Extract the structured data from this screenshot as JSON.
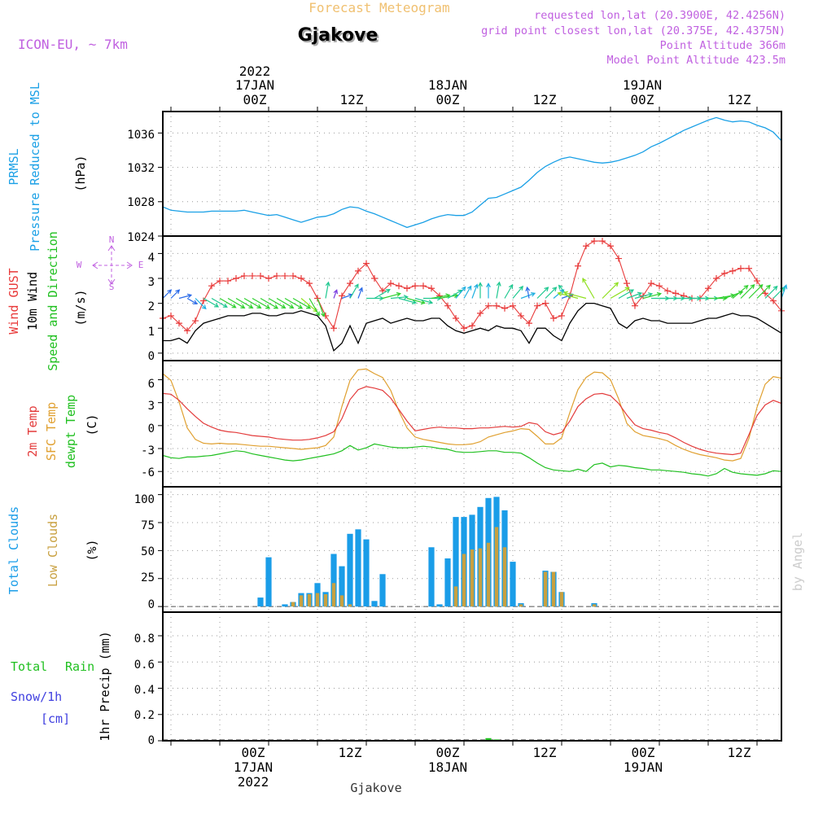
{
  "header": {
    "title": "Forecast Meteogram",
    "location": "Gjakove",
    "model": "ICON-EU, ~ 7km",
    "requested": "requested lon,lat (20.3900E, 42.4256N)",
    "grid_point": "grid point closest lon,lat (20.375E, 42.4375N)",
    "point_altitude": "Point Altitude 366m",
    "model_altitude": "Model Point Altitude 423.5m",
    "footer_location": "Gjakove",
    "watermark": "by Angel"
  },
  "time_axis": {
    "top_year": "2022",
    "days": [
      "17JAN",
      "18JAN",
      "19JAN"
    ],
    "hour_labels": [
      "00Z",
      "12Z",
      "00Z",
      "12Z",
      "00Z",
      "12Z"
    ],
    "bottom_year": "2022",
    "start": "2022-01-16T11:00Z",
    "end": "2022-01-19T15:00Z",
    "step_hours": 1
  },
  "compass": {
    "n": "N",
    "s": "S",
    "e": "E",
    "w": "W"
  },
  "panels": {
    "pressure": {
      "label1": "PRMSL",
      "label2": "Pressure Reduced to MSL",
      "unit": "(hPa)",
      "ticks": [
        "1024",
        "1028",
        "1032",
        "1036"
      ],
      "ylim": [
        1024,
        1038.5
      ]
    },
    "wind": {
      "label1": "Wind GUST",
      "label2": "10m Wind",
      "label3": "Speed and Direction",
      "unit": "(m/s)",
      "ticks": [
        "0",
        "1",
        "2",
        "3",
        "4"
      ],
      "ylim": [
        -0.3,
        4.7
      ]
    },
    "temp": {
      "label1": "2m Temp",
      "label2": "SFC Temp",
      "label3": "dewpt Temp",
      "unit": "(C)",
      "ticks": [
        "-6",
        "-3",
        "0",
        "3",
        "6"
      ],
      "ylim": [
        -8,
        8.5
      ]
    },
    "clouds": {
      "label1": "Total Clouds",
      "label2": "Low Clouds",
      "unit": "(%)",
      "ticks": [
        "0",
        "25",
        "50",
        "75",
        "100"
      ],
      "ylim": [
        -5,
        107
      ]
    },
    "precip": {
      "label1": "Total",
      "label2": "Rain",
      "label3": "Snow/1h",
      "label4": "[cm]",
      "unit": "1hr Precip (mm)",
      "ticks": [
        "0",
        "0.2",
        "0.4",
        "0.6",
        "0.8"
      ],
      "ylim": [
        0,
        0.98
      ]
    }
  },
  "colors": {
    "pressure": "#1aa0e6",
    "gust": "#e83a3a",
    "wind": "#000000",
    "temp2m": "#e33b3b",
    "sfc": "#e0a030",
    "dewpt": "#20c020",
    "total_clouds": "#1a9de8",
    "low_clouds": "#c8a040",
    "rain": "#20c020",
    "snow": "#4040e0",
    "model_text": "#c060e0",
    "title": "#f0c070"
  },
  "chart_data": {
    "type": "line",
    "title": "Forecast Meteogram",
    "x": {
      "start": "2022-01-16T11:00Z",
      "step_hours": 1,
      "count": 77
    },
    "series": [
      {
        "name": "PRMSL",
        "unit": "hPa",
        "values": [
          1027.4,
          1027.0,
          1026.9,
          1026.8,
          1026.8,
          1026.8,
          1026.9,
          1026.9,
          1026.9,
          1026.9,
          1027.0,
          1026.8,
          1026.6,
          1026.4,
          1026.5,
          1026.2,
          1025.9,
          1025.6,
          1025.9,
          1026.2,
          1026.3,
          1026.6,
          1027.1,
          1027.4,
          1027.3,
          1026.9,
          1026.6,
          1026.2,
          1025.8,
          1025.4,
          1025.0,
          1025.3,
          1025.6,
          1026.0,
          1026.3,
          1026.5,
          1026.4,
          1026.4,
          1026.8,
          1027.6,
          1028.4,
          1028.5,
          1028.9,
          1029.3,
          1029.7,
          1030.5,
          1031.4,
          1032.1,
          1032.6,
          1033.0,
          1033.2,
          1033.0,
          1032.8,
          1032.6,
          1032.5,
          1032.6,
          1032.8,
          1033.1,
          1033.4,
          1033.8,
          1034.4,
          1034.8,
          1035.3,
          1035.8,
          1036.3,
          1036.7,
          1037.1,
          1037.5,
          1037.8,
          1037.5,
          1037.3,
          1037.4,
          1037.3,
          1036.9,
          1036.6,
          1036.1,
          1035.1
        ]
      },
      {
        "name": "Wind GUST",
        "unit": "m/s",
        "values": [
          1.4,
          1.5,
          1.2,
          0.9,
          1.3,
          2.1,
          2.7,
          2.9,
          2.9,
          3.0,
          3.1,
          3.1,
          3.1,
          3.0,
          3.1,
          3.1,
          3.1,
          3.0,
          2.8,
          2.2,
          1.5,
          1.0,
          2.3,
          2.8,
          3.3,
          3.6,
          3.0,
          2.5,
          2.8,
          2.7,
          2.6,
          2.7,
          2.7,
          2.6,
          2.3,
          1.9,
          1.4,
          1.0,
          1.1,
          1.6,
          1.9,
          1.9,
          1.8,
          1.9,
          1.5,
          1.2,
          1.9,
          2.0,
          1.4,
          1.5,
          2.3,
          3.5,
          4.3,
          4.5,
          4.5,
          4.3,
          3.8,
          2.8,
          1.9,
          2.3,
          2.8,
          2.7,
          2.5,
          2.4,
          2.3,
          2.2,
          2.2,
          2.6,
          3.0,
          3.2,
          3.3,
          3.4,
          3.4,
          2.9,
          2.4,
          2.1,
          1.7
        ]
      },
      {
        "name": "10m Wind",
        "unit": "m/s",
        "values": [
          0.5,
          0.5,
          0.6,
          0.4,
          0.9,
          1.2,
          1.3,
          1.4,
          1.5,
          1.5,
          1.5,
          1.6,
          1.6,
          1.5,
          1.5,
          1.6,
          1.6,
          1.7,
          1.6,
          1.5,
          1.1,
          0.1,
          0.4,
          1.1,
          0.4,
          1.2,
          1.3,
          1.4,
          1.2,
          1.3,
          1.4,
          1.3,
          1.3,
          1.4,
          1.4,
          1.1,
          0.9,
          0.8,
          0.9,
          1.0,
          0.9,
          1.1,
          1.0,
          1.0,
          0.9,
          0.4,
          1.0,
          1.0,
          0.7,
          0.5,
          1.2,
          1.7,
          2.0,
          2.0,
          1.9,
          1.8,
          1.2,
          1.0,
          1.3,
          1.4,
          1.3,
          1.3,
          1.2,
          1.2,
          1.2,
          1.2,
          1.3,
          1.4,
          1.4,
          1.5,
          1.6,
          1.5,
          1.5,
          1.4,
          1.2,
          1.0,
          0.8
        ]
      },
      {
        "name": "2m Temp",
        "unit": "C",
        "values": [
          4.2,
          4.1,
          3.3,
          2.2,
          1.2,
          0.3,
          -0.2,
          -0.6,
          -0.8,
          -0.9,
          -1.1,
          -1.3,
          -1.4,
          -1.5,
          -1.7,
          -1.8,
          -1.9,
          -1.9,
          -1.8,
          -1.6,
          -1.3,
          -0.8,
          0.9,
          3.4,
          4.7,
          5.1,
          4.9,
          4.6,
          3.6,
          2.1,
          0.6,
          -0.7,
          -0.5,
          -0.3,
          -0.2,
          -0.3,
          -0.3,
          -0.4,
          -0.4,
          -0.3,
          -0.3,
          -0.2,
          -0.1,
          -0.2,
          -0.1,
          0.4,
          0.2,
          -0.8,
          -1.2,
          -0.9,
          0.6,
          2.5,
          3.5,
          4.1,
          4.2,
          3.9,
          2.9,
          1.4,
          0.1,
          -0.4,
          -0.6,
          -0.9,
          -1.1,
          -1.6,
          -2.2,
          -2.7,
          -3.1,
          -3.4,
          -3.6,
          -3.7,
          -3.8,
          -3.6,
          -1.2,
          1.3,
          2.7,
          3.3,
          2.9
        ]
      },
      {
        "name": "SFC Temp",
        "unit": "C",
        "values": [
          6.8,
          5.9,
          3.1,
          -0.3,
          -1.8,
          -2.3,
          -2.4,
          -2.3,
          -2.4,
          -2.4,
          -2.5,
          -2.6,
          -2.7,
          -2.7,
          -2.8,
          -2.9,
          -3.0,
          -3.1,
          -3.0,
          -2.9,
          -2.6,
          -1.5,
          2.5,
          5.9,
          7.3,
          7.4,
          6.8,
          6.3,
          4.6,
          1.9,
          -0.3,
          -1.5,
          -1.8,
          -2.0,
          -2.2,
          -2.4,
          -2.5,
          -2.5,
          -2.4,
          -2.1,
          -1.5,
          -1.2,
          -0.9,
          -0.7,
          -0.4,
          -0.5,
          -1.4,
          -2.4,
          -2.4,
          -1.6,
          1.7,
          4.7,
          6.3,
          7.0,
          6.9,
          6.0,
          3.5,
          0.3,
          -0.8,
          -1.3,
          -1.5,
          -1.7,
          -2.0,
          -2.6,
          -3.1,
          -3.5,
          -3.8,
          -4.0,
          -4.2,
          -4.5,
          -4.6,
          -4.3,
          -1.7,
          2.4,
          5.4,
          6.4,
          6.2
        ]
      },
      {
        "name": "dewpt Temp",
        "unit": "C",
        "values": [
          -3.9,
          -4.2,
          -4.3,
          -4.1,
          -4.1,
          -4.0,
          -3.9,
          -3.7,
          -3.5,
          -3.3,
          -3.4,
          -3.7,
          -3.9,
          -4.1,
          -4.3,
          -4.5,
          -4.6,
          -4.5,
          -4.3,
          -4.1,
          -3.9,
          -3.7,
          -3.3,
          -2.6,
          -3.2,
          -2.9,
          -2.4,
          -2.6,
          -2.8,
          -2.9,
          -2.9,
          -2.8,
          -2.7,
          -2.8,
          -3.0,
          -3.1,
          -3.4,
          -3.5,
          -3.5,
          -3.4,
          -3.3,
          -3.3,
          -3.5,
          -3.5,
          -3.6,
          -4.2,
          -4.9,
          -5.5,
          -5.8,
          -5.9,
          -6.0,
          -5.7,
          -6.0,
          -5.1,
          -4.9,
          -5.4,
          -5.2,
          -5.3,
          -5.5,
          -5.6,
          -5.8,
          -5.8,
          -5.9,
          -6.0,
          -6.1,
          -6.3,
          -6.4,
          -6.6,
          -6.3,
          -5.6,
          -6.1,
          -6.3,
          -6.4,
          -6.5,
          -6.3,
          -5.9,
          -6.0
        ]
      },
      {
        "name": "Total Clouds",
        "unit": "%",
        "values": [
          0,
          0,
          0,
          0,
          0,
          0,
          0,
          0,
          0,
          0,
          0,
          0,
          8,
          44,
          0,
          2,
          4,
          12,
          12,
          21,
          13,
          47,
          36,
          65,
          69,
          60,
          5,
          29,
          0,
          0,
          0,
          0,
          0,
          53,
          2,
          43,
          80,
          80,
          82,
          89,
          97,
          98,
          86,
          40,
          3,
          0,
          0,
          32,
          31,
          13,
          0,
          0,
          0,
          3,
          0,
          0,
          0,
          0,
          0,
          0,
          0,
          0,
          0,
          0,
          0,
          0,
          0,
          0,
          0,
          0,
          0,
          0,
          0,
          0,
          0,
          0,
          0
        ]
      },
      {
        "name": "Low Clouds",
        "unit": "%",
        "values": [
          0,
          0,
          0,
          0,
          0,
          0,
          0,
          0,
          0,
          0,
          0,
          0,
          0,
          0,
          0,
          0,
          4,
          10,
          11,
          12,
          11,
          21,
          10,
          2,
          0,
          0,
          0,
          0,
          0,
          0,
          0,
          0,
          0,
          0,
          0,
          0,
          18,
          47,
          51,
          52,
          57,
          71,
          53,
          0,
          2,
          0,
          0,
          31,
          31,
          13,
          0,
          0,
          0,
          2,
          0,
          0,
          0,
          0,
          0,
          0,
          0,
          0,
          0,
          0,
          0,
          0,
          0,
          0,
          0,
          0,
          0,
          0,
          0,
          0,
          0,
          0,
          0
        ]
      },
      {
        "name": "Total",
        "unit": "mm",
        "values": [
          0,
          0,
          0,
          0,
          0,
          0,
          0,
          0,
          0,
          0,
          0,
          0,
          0,
          0,
          0,
          0,
          0,
          0,
          0,
          0,
          0,
          0,
          0,
          0,
          0,
          0,
          0,
          0,
          0,
          0,
          0,
          0,
          0,
          0,
          0,
          0,
          0,
          0,
          0,
          0,
          0.02,
          0.01,
          0,
          0,
          0,
          0,
          0,
          0,
          0,
          0,
          0,
          0,
          0,
          0,
          0,
          0,
          0,
          0,
          0,
          0,
          0,
          0,
          0,
          0,
          0,
          0,
          0,
          0,
          0,
          0,
          0,
          0,
          0,
          0,
          0,
          0,
          0
        ]
      }
    ],
    "wind_direction": {
      "unit": "deg (blowing from)",
      "values": [
        225,
        225,
        255,
        300,
        315,
        300,
        300,
        300,
        300,
        300,
        300,
        300,
        300,
        300,
        300,
        300,
        300,
        310,
        330,
        340,
        190,
        200,
        250,
        210,
        200,
        270,
        240,
        255,
        265,
        285,
        285,
        285,
        270,
        260,
        260,
        240,
        220,
        210,
        200,
        180,
        180,
        190,
        210,
        220,
        250,
        170,
        225,
        225,
        230,
        250,
        140,
        105,
        105,
        150,
        225,
        240,
        240,
        250,
        255,
        255,
        270,
        270,
        270,
        270,
        270,
        270,
        270,
        270,
        260,
        250,
        230,
        225,
        225,
        225,
        225,
        225,
        200
      ]
    }
  }
}
